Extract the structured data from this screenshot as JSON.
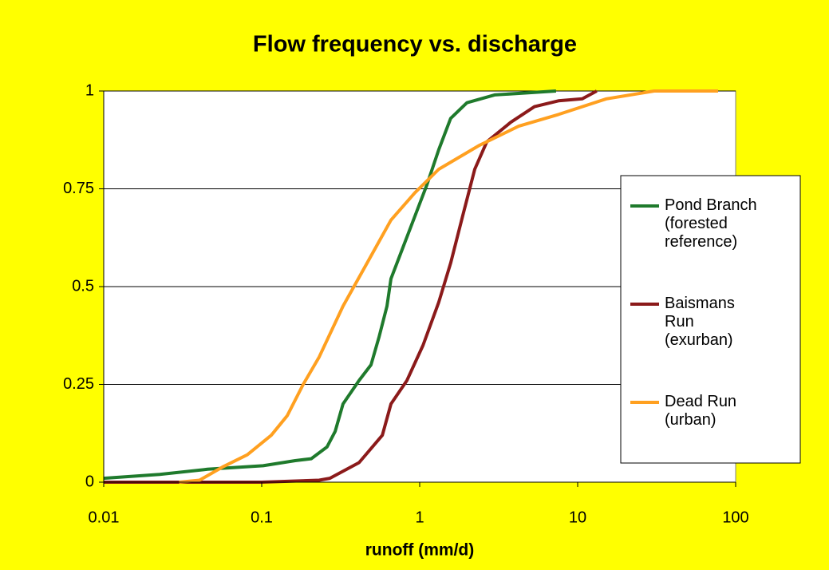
{
  "chart_data": {
    "type": "line",
    "title": "Flow frequency vs. discharge",
    "xlabel": "runoff (mm/d)",
    "xscale": "log",
    "xlim": [
      0.01,
      100
    ],
    "xticks": [
      0.01,
      0.1,
      1,
      10,
      100
    ],
    "ylim": [
      0,
      1
    ],
    "yticks": [
      0,
      0.25,
      0.5,
      0.75,
      1
    ],
    "grid": true,
    "legend": "right",
    "series": [
      {
        "name": "Pond Branch (forested reference)",
        "color": "#1f7a2c",
        "x": [
          0.01,
          0.0226,
          0.0454,
          0.102,
          0.163,
          0.206,
          0.259,
          0.292,
          0.327,
          0.413,
          0.492,
          0.552,
          0.621,
          0.658,
          0.783,
          0.933,
          1.11,
          1.32,
          1.57,
          1.99,
          2.98,
          7.3
        ],
        "values": [
          0.01,
          0.02,
          0.033,
          0.042,
          0.055,
          0.06,
          0.09,
          0.13,
          0.2,
          0.26,
          0.3,
          0.37,
          0.45,
          0.52,
          0.6,
          0.68,
          0.76,
          0.85,
          0.93,
          0.97,
          0.99,
          1
        ]
      },
      {
        "name": "Baismans Run (exurban)",
        "color": "#8b1a1a",
        "x": [
          0.01,
          0.1,
          0.231,
          0.27,
          0.413,
          0.58,
          0.658,
          0.83,
          1.05,
          1.32,
          1.57,
          1.87,
          2.23,
          2.66,
          3.77,
          5.33,
          7.56,
          10.7,
          13.2
        ],
        "values": [
          0,
          0,
          0.005,
          0.01,
          0.05,
          0.12,
          0.2,
          0.26,
          0.35,
          0.46,
          0.56,
          0.68,
          0.8,
          0.87,
          0.92,
          0.96,
          0.975,
          0.98,
          1
        ]
      },
      {
        "name": "Dead Run (urban)",
        "color": "#ffa020",
        "x": [
          0.03,
          0.0404,
          0.0572,
          0.081,
          0.115,
          0.145,
          0.183,
          0.231,
          0.327,
          0.464,
          0.658,
          0.933,
          1.32,
          2.36,
          4.23,
          7.56,
          15.2,
          30.5,
          77.4
        ],
        "values": [
          0,
          0.005,
          0.04,
          0.07,
          0.12,
          0.17,
          0.25,
          0.32,
          0.45,
          0.56,
          0.67,
          0.74,
          0.8,
          0.86,
          0.91,
          0.94,
          0.98,
          1,
          1
        ]
      }
    ]
  }
}
